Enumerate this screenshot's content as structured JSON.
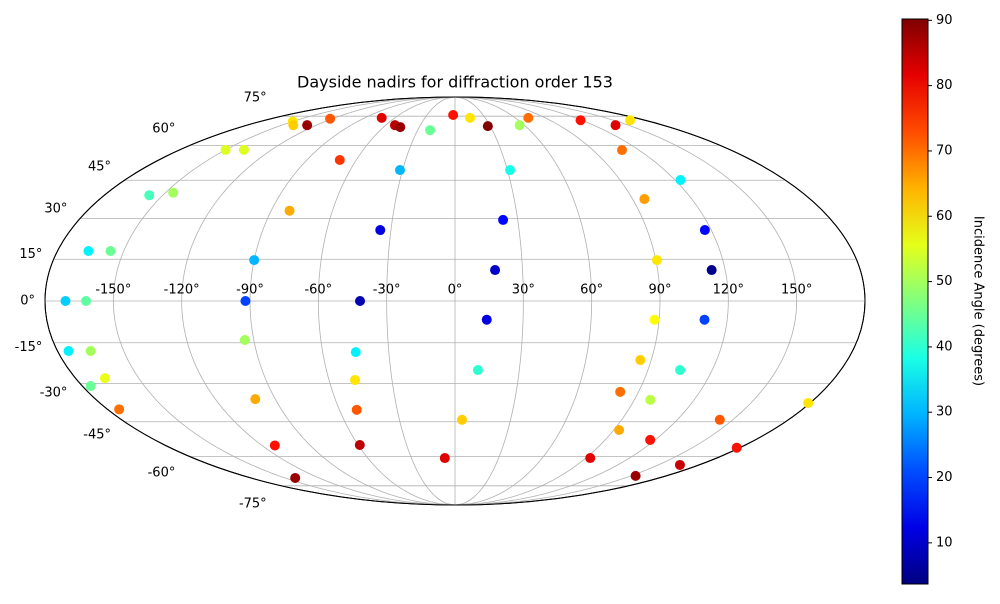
{
  "chart_data": {
    "type": "scatter",
    "projection": "mollweide",
    "title": "Dayside nadirs for diffraction order 153",
    "colorbar_label": "Incidence Angle (degrees)",
    "colormap": "jet",
    "clim": [
      3.7,
      90.2
    ],
    "cticks": [
      10,
      20,
      30,
      40,
      50,
      60,
      70,
      80,
      90
    ],
    "grid": true,
    "xlim": [
      -180,
      180
    ],
    "ylim": [
      -90,
      90
    ],
    "xticks": [
      {
        "value": -150,
        "label": "-150°"
      },
      {
        "value": -120,
        "label": "-120°"
      },
      {
        "value": -90,
        "label": "-90°"
      },
      {
        "value": -60,
        "label": "-60°"
      },
      {
        "value": -30,
        "label": "-30°"
      },
      {
        "value": 0,
        "label": "0°"
      },
      {
        "value": 30,
        "label": "30°"
      },
      {
        "value": 60,
        "label": "60°"
      },
      {
        "value": 90,
        "label": "90°"
      },
      {
        "value": 120,
        "label": "120°"
      },
      {
        "value": 150,
        "label": "150°"
      }
    ],
    "yticks": [
      {
        "value": -75,
        "label": "-75°"
      },
      {
        "value": -60,
        "label": "-60°"
      },
      {
        "value": -45,
        "label": "-45°"
      },
      {
        "value": -30,
        "label": "-30°"
      },
      {
        "value": -15,
        "label": "-15°"
      },
      {
        "value": 0,
        "label": "0°"
      },
      {
        "value": 15,
        "label": "15°"
      },
      {
        "value": 30,
        "label": "30°"
      },
      {
        "value": 45,
        "label": "45°"
      },
      {
        "value": 60,
        "label": "60°"
      },
      {
        "value": 75,
        "label": "75°"
      }
    ],
    "x": [
      -150,
      -150,
      -157,
      -166,
      -171,
      -175,
      -176,
      -174,
      -140,
      -138,
      -146,
      -156,
      -162,
      -165,
      -166,
      -52,
      -70,
      -81,
      -90,
      -92,
      -94,
      -100,
      -112,
      -141,
      -20,
      -31.5,
      -35,
      -41.7,
      -45,
      -47.6,
      -51,
      -59,
      56,
      31.5,
      23,
      17.8,
      14,
      10.7,
      3.8,
      -7,
      166,
      123,
      117,
      114,
      110,
      105,
      98,
      93,
      93,
      109,
      96,
      90.5,
      88,
      85,
      81,
      117,
      143,
      179,
      154,
      166,
      178,
      -122,
      -73,
      -2,
      73,
      119,
      139,
      -128,
      -46,
      28,
      15
    ],
    "y": [
      72,
      58,
      39,
      18,
      0,
      -18,
      -31,
      -40,
      70,
      58,
      40,
      18,
      0,
      -18,
      -28,
      70,
      53.5,
      33,
      14.7,
      0,
      -14,
      -36,
      -55,
      -70.6,
      67.4,
      49.2,
      25.7,
      0,
      -18.4,
      -28.7,
      -40.2,
      -54.8,
      70,
      49.2,
      29.5,
      11.1,
      -6.7,
      -25,
      -44.2,
      -60.7,
      72.7,
      45.1,
      25.7,
      11.1,
      -6.7,
      -25,
      -36.3,
      -48.4,
      -60.7,
      57.9,
      37.5,
      14.7,
      -6.7,
      -21.3,
      -33.2,
      -52.6,
      -44.2,
      -37.5,
      -69.5,
      -64,
      -56,
      73.5,
      74,
      75.7,
      74,
      72.7,
      70,
      70,
      69,
      69.5,
      74
    ],
    "values": [
      60,
      55,
      42,
      35,
      32,
      35,
      45,
      70,
      62,
      55,
      50,
      45,
      44,
      50,
      56,
      85,
      75,
      65,
      30,
      20,
      50,
      65,
      78,
      88,
      45,
      30,
      12,
      8,
      35,
      60,
      72,
      85,
      50,
      38,
      15,
      10,
      12,
      40,
      62,
      82,
      60,
      35,
      15,
      5,
      20,
      40,
      52,
      65,
      82,
      70,
      66,
      60,
      58,
      62,
      70,
      78,
      72,
      60,
      88,
      84,
      78,
      72,
      82,
      78,
      70,
      78,
      82,
      88,
      88,
      90,
      60
    ]
  }
}
